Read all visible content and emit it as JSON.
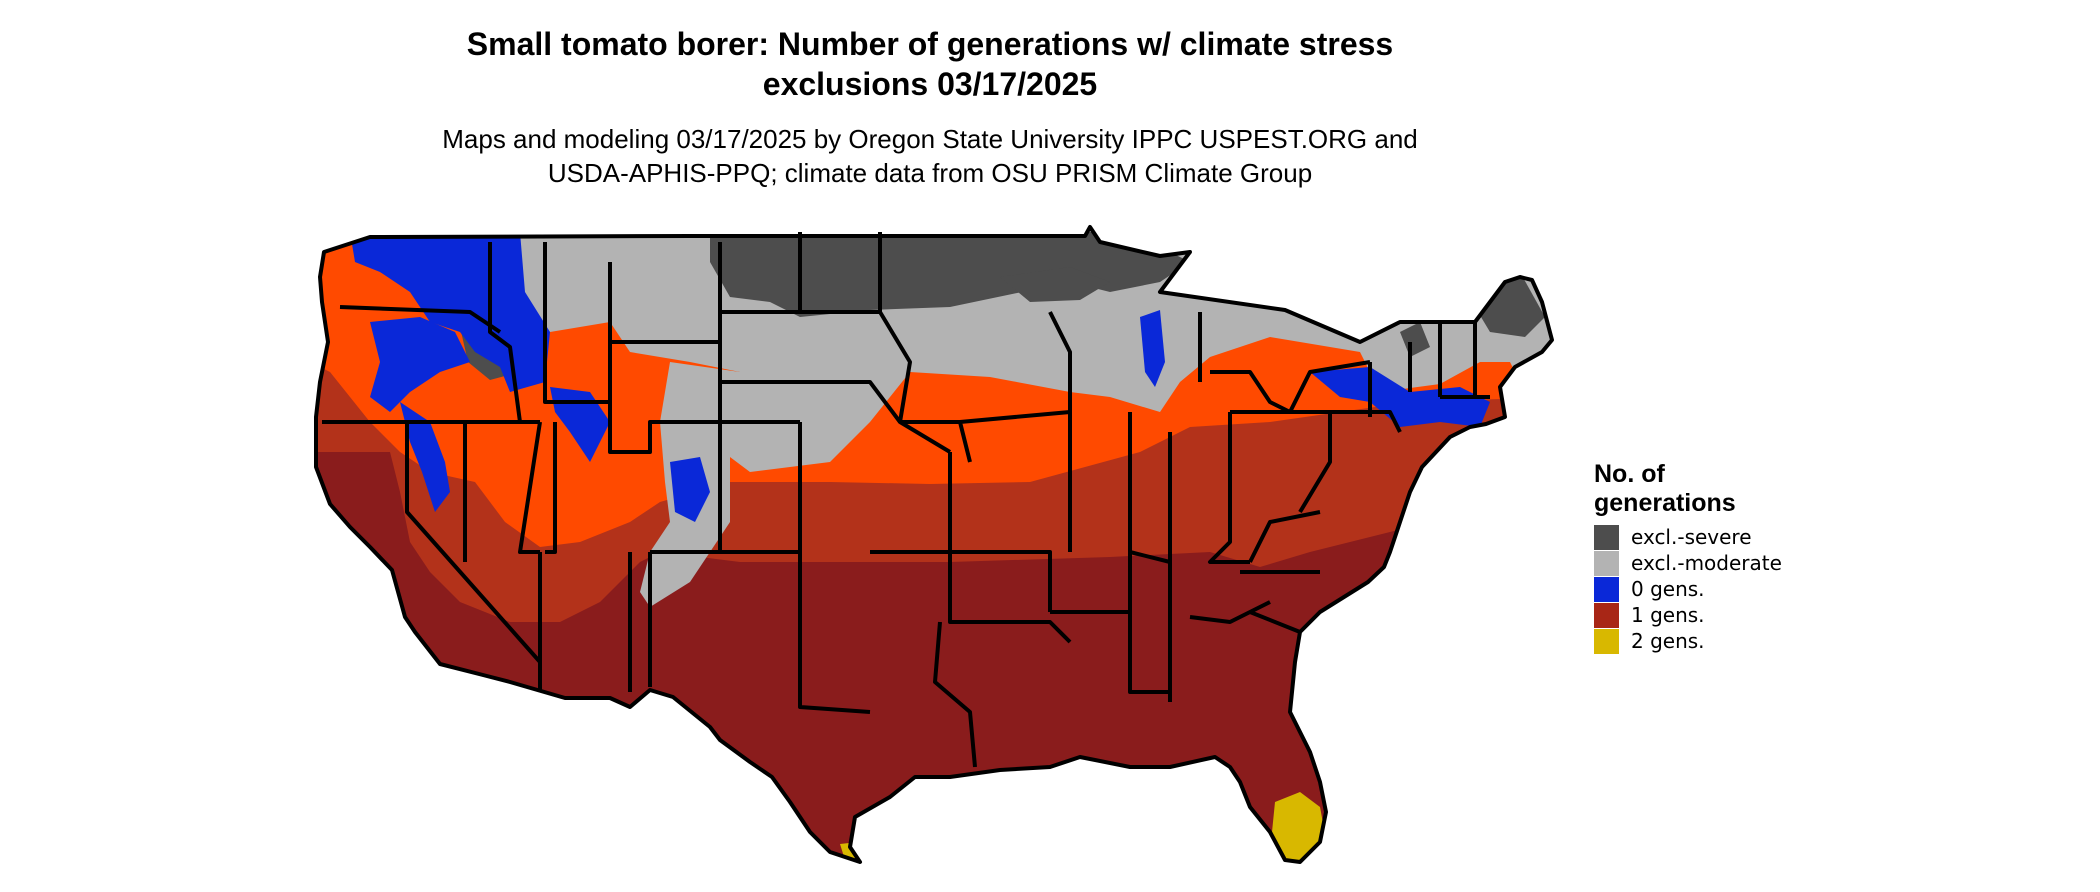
{
  "title": {
    "line1": "Small tomato borer: Number of generations w/ climate stress",
    "line2": "exclusions 03/17/2025"
  },
  "subtitle": {
    "line1": "Maps and modeling 03/17/2025 by Oregon State University IPPC USPEST.ORG and",
    "line2": "USDA-APHIS-PPQ; climate data from OSU PRISM Climate Group"
  },
  "legend": {
    "title_line1": "No. of",
    "title_line2": "generations",
    "items": [
      {
        "label": "excl.-severe",
        "color": "#4d4d4d"
      },
      {
        "label": "excl.-moderate",
        "color": "#b3b3b3"
      },
      {
        "label": "0 gens.",
        "color": "#0a28d8"
      },
      {
        "label": "1 gens.",
        "color": "#a82616"
      },
      {
        "label": "2 gens.",
        "color": "#d8b800"
      }
    ]
  },
  "map": {
    "region": "Contiguous United States",
    "colors": {
      "excl_severe": "#4d4d4d",
      "excl_moderate": "#b3b3b3",
      "gens_0": "#0a28d8",
      "gens_1_dark": "#8a1c1c",
      "gens_1_mid": "#b3321a",
      "gens_1_light": "#ff4a00",
      "gens_2": "#d8b800",
      "borders": "#000000"
    }
  }
}
